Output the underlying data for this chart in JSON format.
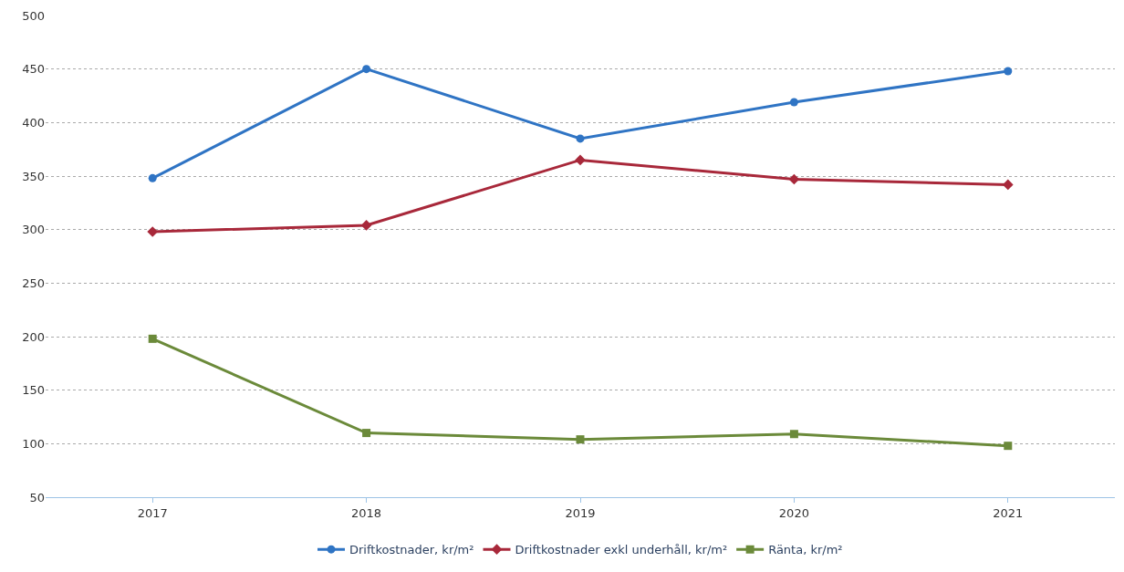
{
  "chart_data": {
    "type": "line",
    "categories": [
      "2017",
      "2018",
      "2019",
      "2020",
      "2021"
    ],
    "series": [
      {
        "name": "Driftkostnader, kr/m²",
        "color": "#2f74c4",
        "marker": "circle",
        "values": [
          348,
          450,
          385,
          419,
          448
        ]
      },
      {
        "name": "Driftkostnader exkl underhåll, kr/m²",
        "color": "#a8283a",
        "marker": "diamond",
        "values": [
          298,
          304,
          365,
          347,
          342
        ]
      },
      {
        "name": "Ränta, kr/m²",
        "color": "#6b8a3a",
        "marker": "square",
        "values": [
          198,
          110,
          104,
          109,
          98
        ]
      }
    ],
    "ylim": [
      50,
      500
    ],
    "yticks": [
      50,
      100,
      150,
      200,
      250,
      300,
      350,
      400,
      450,
      500
    ],
    "grid": "y",
    "legend": "bottom",
    "line_style": "solid"
  }
}
